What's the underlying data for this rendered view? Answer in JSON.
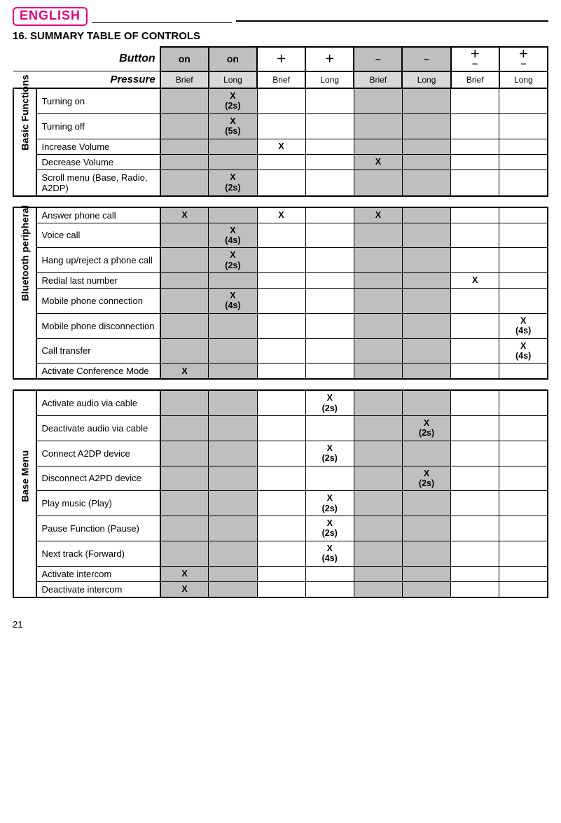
{
  "langBadge": {
    "text": "ENGLISH",
    "color": "#e6007e"
  },
  "title": "16. SUMMARY TABLE OF CONTROLS",
  "headerLabels": {
    "button": "Button",
    "pressure": "Pressure"
  },
  "buttonHeaders": [
    {
      "label": "on",
      "gray": true
    },
    {
      "label": "on",
      "gray": true
    },
    {
      "label": "＋",
      "gray": false
    },
    {
      "label": "＋",
      "gray": false
    },
    {
      "label": "–",
      "gray": true
    },
    {
      "label": "–",
      "gray": true
    },
    {
      "label": "+-",
      "gray": false,
      "stack": true
    },
    {
      "label": "+-",
      "gray": false,
      "stack": true
    }
  ],
  "pressureHeaders": [
    {
      "label": "Brief",
      "gray": true
    },
    {
      "label": "Long",
      "gray": true
    },
    {
      "label": "Brief",
      "gray": false
    },
    {
      "label": "Long",
      "gray": false
    },
    {
      "label": "Brief",
      "gray": true
    },
    {
      "label": "Long",
      "gray": true
    },
    {
      "label": "Brief",
      "gray": false
    },
    {
      "label": "Long",
      "gray": false
    }
  ],
  "grayCols": [
    true,
    true,
    false,
    false,
    true,
    true,
    false,
    false
  ],
  "sections": [
    {
      "group": "Basic Functions",
      "rows": [
        {
          "label": "Turning on",
          "cells": [
            "",
            "X\n(2s)",
            "",
            "",
            "",
            "",
            "",
            ""
          ]
        },
        {
          "label": "Turning off",
          "cells": [
            "",
            "X\n(5s)",
            "",
            "",
            "",
            "",
            "",
            ""
          ]
        },
        {
          "label": "Increase Volume",
          "cells": [
            "",
            "",
            "X",
            "",
            "",
            "",
            "",
            ""
          ]
        },
        {
          "label": "Decrease Volume",
          "cells": [
            "",
            "",
            "",
            "",
            "X",
            "",
            "",
            ""
          ]
        },
        {
          "label": "Scroll menu (Base, Radio, A2DP)",
          "cells": [
            "",
            "X\n(2s)",
            "",
            "",
            "",
            "",
            "",
            ""
          ]
        }
      ]
    },
    {
      "group": "Bluetooth peripheral",
      "rows": [
        {
          "label": "Answer phone call",
          "cells": [
            "X",
            "",
            "X",
            "",
            "X",
            "",
            "",
            ""
          ]
        },
        {
          "label": "Voice call",
          "cells": [
            "",
            "X\n(4s)",
            "",
            "",
            "",
            "",
            "",
            ""
          ]
        },
        {
          "label": "Hang up/reject a phone call",
          "cells": [
            "",
            "X\n(2s)",
            "",
            "",
            "",
            "",
            "",
            ""
          ]
        },
        {
          "label": "Redial last number",
          "cells": [
            "",
            "",
            "",
            "",
            "",
            "",
            "X",
            ""
          ]
        },
        {
          "label": "Mobile phone connection",
          "cells": [
            "",
            "X\n(4s)",
            "",
            "",
            "",
            "",
            "",
            ""
          ]
        },
        {
          "label": "Mobile phone disconnection",
          "cells": [
            "",
            "",
            "",
            "",
            "",
            "",
            "",
            "X\n(4s)"
          ]
        },
        {
          "label": "Call transfer",
          "cells": [
            "",
            "",
            "",
            "",
            "",
            "",
            "",
            "X\n(4s)"
          ]
        },
        {
          "label": "Activate Conference Mode",
          "cells": [
            "X",
            "",
            "",
            "",
            "",
            "",
            "",
            ""
          ]
        }
      ]
    },
    {
      "group": "Base Menu",
      "rows": [
        {
          "label": "Activate audio via cable",
          "cells": [
            "",
            "",
            "",
            "X\n(2s)",
            "",
            "",
            "",
            ""
          ]
        },
        {
          "label": "Deactivate audio via cable",
          "cells": [
            "",
            "",
            "",
            "",
            "",
            "X\n(2s)",
            "",
            ""
          ]
        },
        {
          "label": "Connect A2DP device",
          "cells": [
            "",
            "",
            "",
            "X\n(2s)",
            "",
            "",
            "",
            ""
          ]
        },
        {
          "label": "Disconnect A2PD device",
          "cells": [
            "",
            "",
            "",
            "",
            "",
            "X\n(2s)",
            "",
            ""
          ]
        },
        {
          "label": "Play music (Play)",
          "cells": [
            "",
            "",
            "",
            "X\n(2s)",
            "",
            "",
            "",
            ""
          ]
        },
        {
          "label": "Pause Function (Pause)",
          "cells": [
            "",
            "",
            "",
            "X\n(2s)",
            "",
            "",
            "",
            ""
          ]
        },
        {
          "label": "Next track (Forward)",
          "cells": [
            "",
            "",
            "",
            "X\n(4s)",
            "",
            "",
            "",
            ""
          ]
        },
        {
          "label": "Activate intercom",
          "cells": [
            "X",
            "",
            "",
            "",
            "",
            "",
            "",
            ""
          ]
        },
        {
          "label": "Deactivate intercom",
          "cells": [
            "X",
            "",
            "",
            "",
            "",
            "",
            "",
            ""
          ]
        }
      ]
    }
  ],
  "pageNumber": "21"
}
